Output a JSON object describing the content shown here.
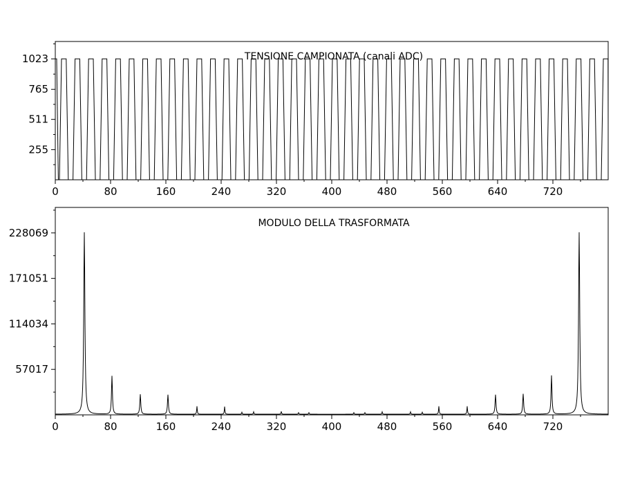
{
  "chart_data": [
    {
      "type": "line",
      "title": "TENSIONE CAMPIONATA (canali ADC)",
      "xlabel": "",
      "ylabel": "",
      "xlim": [
        0,
        800
      ],
      "ylim": [
        0,
        1170
      ],
      "x_ticks": [
        0,
        80,
        160,
        240,
        320,
        400,
        480,
        560,
        640,
        720
      ],
      "x_minor_step": 40,
      "y_ticks": [
        255,
        511,
        765,
        1023
      ],
      "y_minor_ticks": [
        128,
        383,
        638,
        894,
        1150
      ],
      "grid": false,
      "legend": "none",
      "color": "#000000",
      "series": [
        {
          "period_samples": 19.6,
          "first_rise_at": 6,
          "high_value": 1023,
          "low_value": 0,
          "duty_high": 0.5,
          "edge_samples": 3,
          "cycles_shown": 41,
          "final_value": 470
        }
      ]
    },
    {
      "type": "line",
      "title": "MODULO DELLA TRASFORMATA",
      "xlabel": "",
      "ylabel": "",
      "xlim": [
        0,
        800
      ],
      "ylim": [
        0,
        260000
      ],
      "x_ticks": [
        0,
        80,
        160,
        240,
        320,
        400,
        480,
        560,
        640,
        720
      ],
      "x_minor_step": 40,
      "y_ticks": [
        57017,
        114034,
        171051,
        228069
      ],
      "y_minor_ticks": [
        28509,
        85526,
        142543,
        199560,
        256578
      ],
      "grid": false,
      "legend": "none",
      "color": "#000000",
      "series": [
        {
          "baseline": 800,
          "peaks": [
            {
              "x": 42,
              "y": 228069
            },
            {
              "x": 82,
              "y": 48000
            },
            {
              "x": 123,
              "y": 25000
            },
            {
              "x": 163,
              "y": 24500
            },
            {
              "x": 205,
              "y": 10000
            },
            {
              "x": 245,
              "y": 9500
            },
            {
              "x": 270,
              "y": 2500
            },
            {
              "x": 287,
              "y": 3000
            },
            {
              "x": 327,
              "y": 3500
            },
            {
              "x": 352,
              "y": 2000
            },
            {
              "x": 367,
              "y": 2000
            },
            {
              "x": 432,
              "y": 2000
            },
            {
              "x": 448,
              "y": 2000
            },
            {
              "x": 473,
              "y": 3000
            },
            {
              "x": 514,
              "y": 3000
            },
            {
              "x": 531,
              "y": 2500
            },
            {
              "x": 555,
              "y": 10000
            },
            {
              "x": 596,
              "y": 10000
            },
            {
              "x": 637,
              "y": 24500
            },
            {
              "x": 677,
              "y": 25500
            },
            {
              "x": 718,
              "y": 48500
            },
            {
              "x": 758,
              "y": 228069
            }
          ]
        }
      ]
    }
  ]
}
